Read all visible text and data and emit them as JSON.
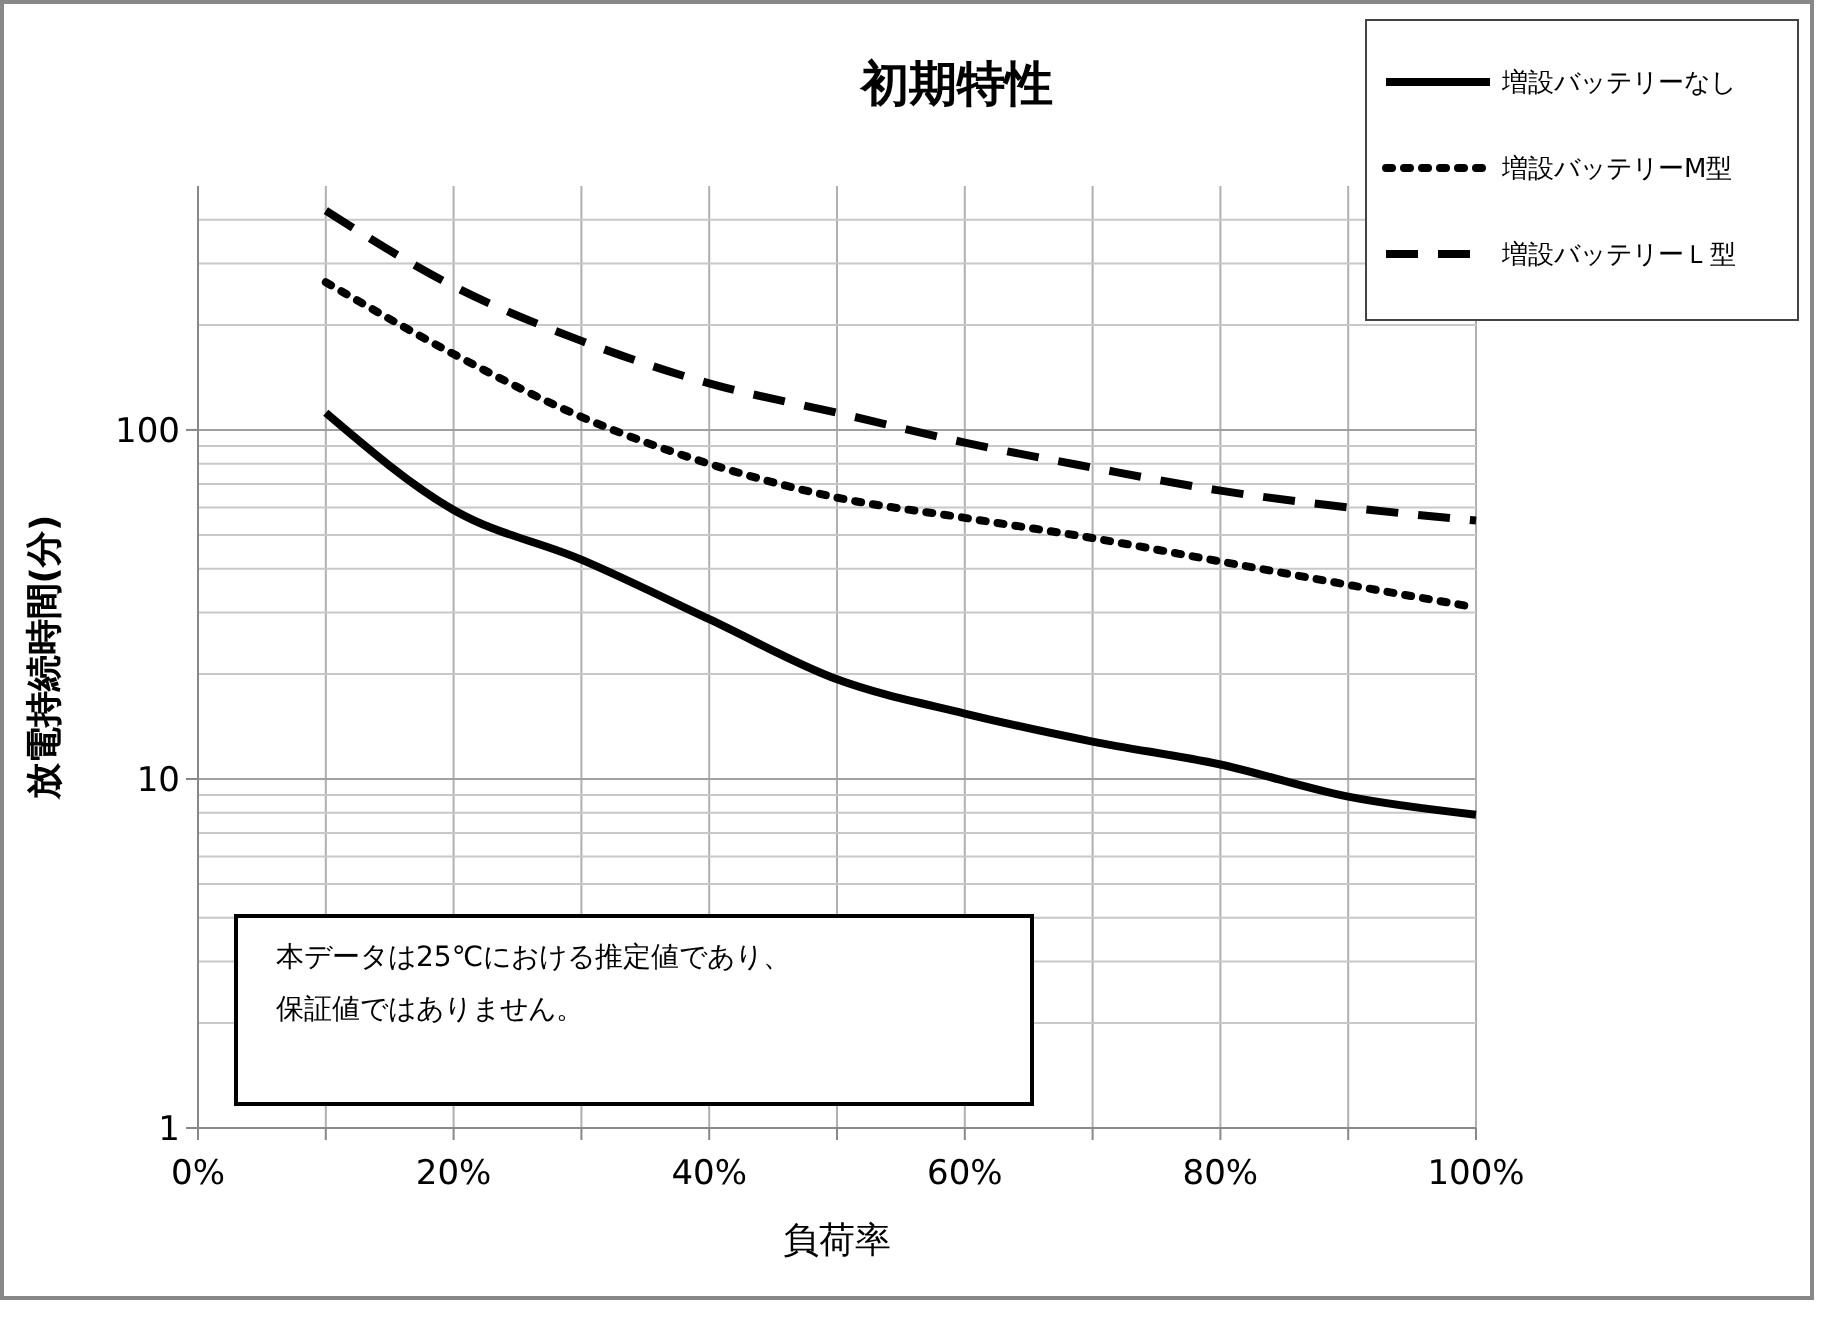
{
  "chart_data": {
    "type": "line",
    "title": "初期特性",
    "xlabel": "負荷率",
    "ylabel": "放電持続時間(分)",
    "x": [
      10,
      20,
      30,
      40,
      50,
      60,
      70,
      80,
      90,
      100
    ],
    "series": [
      {
        "name": "増設バッテリーなし",
        "color": "#000000",
        "line_style": "solid",
        "values": [
          112,
          59,
          42.5,
          28.7,
          19.3,
          15.4,
          12.8,
          11,
          8.9,
          7.9
        ]
      },
      {
        "name": "増設バッテリーM型",
        "color": "#000000",
        "line_style": "dotted",
        "values": [
          265,
          165,
          109,
          80,
          64,
          56,
          49,
          42,
          36,
          31
        ]
      },
      {
        "name": "増設バッテリーＬ型",
        "color": "#000000",
        "line_style": "dashed",
        "values": [
          425,
          258,
          180,
          136,
          112,
          92,
          78,
          67,
          60,
          55
        ]
      }
    ],
    "xlim": [
      0,
      100
    ],
    "xticks": [
      {
        "value": 0,
        "label": "0%"
      },
      {
        "value": 10,
        "label": null
      },
      {
        "value": 20,
        "label": "20%"
      },
      {
        "value": 30,
        "label": null
      },
      {
        "value": 40,
        "label": "40%"
      },
      {
        "value": 50,
        "label": null
      },
      {
        "value": 60,
        "label": "60%"
      },
      {
        "value": 70,
        "label": null
      },
      {
        "value": 80,
        "label": "80%"
      },
      {
        "value": 90,
        "label": null
      },
      {
        "value": 100,
        "label": "100%"
      }
    ],
    "ylim": [
      1,
      500
    ],
    "yticks": [
      1,
      10,
      100
    ],
    "log": true,
    "grid": true,
    "legend": "top right",
    "marker": "none",
    "annotations": [
      "本データは25℃における推定値であり、保証値ではありません。"
    ]
  }
}
